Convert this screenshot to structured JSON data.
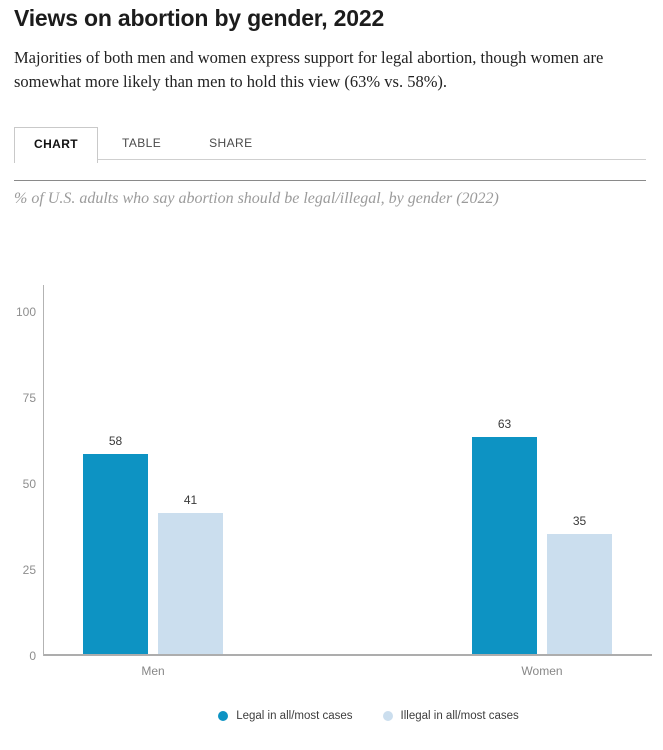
{
  "header": {
    "title": "Views on abortion by gender, 2022",
    "description": "Majorities of both men and women express support for legal abortion, though women are somewhat more likely than men to hold this view (63% vs. 58%)."
  },
  "tabs": [
    {
      "label": "CHART",
      "active": true
    },
    {
      "label": "TABLE",
      "active": false
    },
    {
      "label": "SHARE",
      "active": false
    }
  ],
  "chart_data": {
    "type": "bar",
    "subtitle": "% of U.S. adults who say abortion should be legal/illegal, by gender (2022)",
    "categories": [
      "Men",
      "Women"
    ],
    "series": [
      {
        "name": "Legal in all/most cases",
        "color": "#0d93c3",
        "values": [
          58,
          63
        ]
      },
      {
        "name": "Illegal in all/most cases",
        "color": "#cbdeee",
        "values": [
          41,
          35
        ]
      }
    ],
    "yticks": [
      0,
      25,
      50,
      75,
      100
    ],
    "ylim": [
      0,
      100
    ],
    "grid": false,
    "legend_position": "bottom",
    "value_labels": true,
    "colors": {
      "axis": "#b3b3b3",
      "tick_label": "#8e8e8e",
      "value_label": "#3a3a3a"
    }
  }
}
